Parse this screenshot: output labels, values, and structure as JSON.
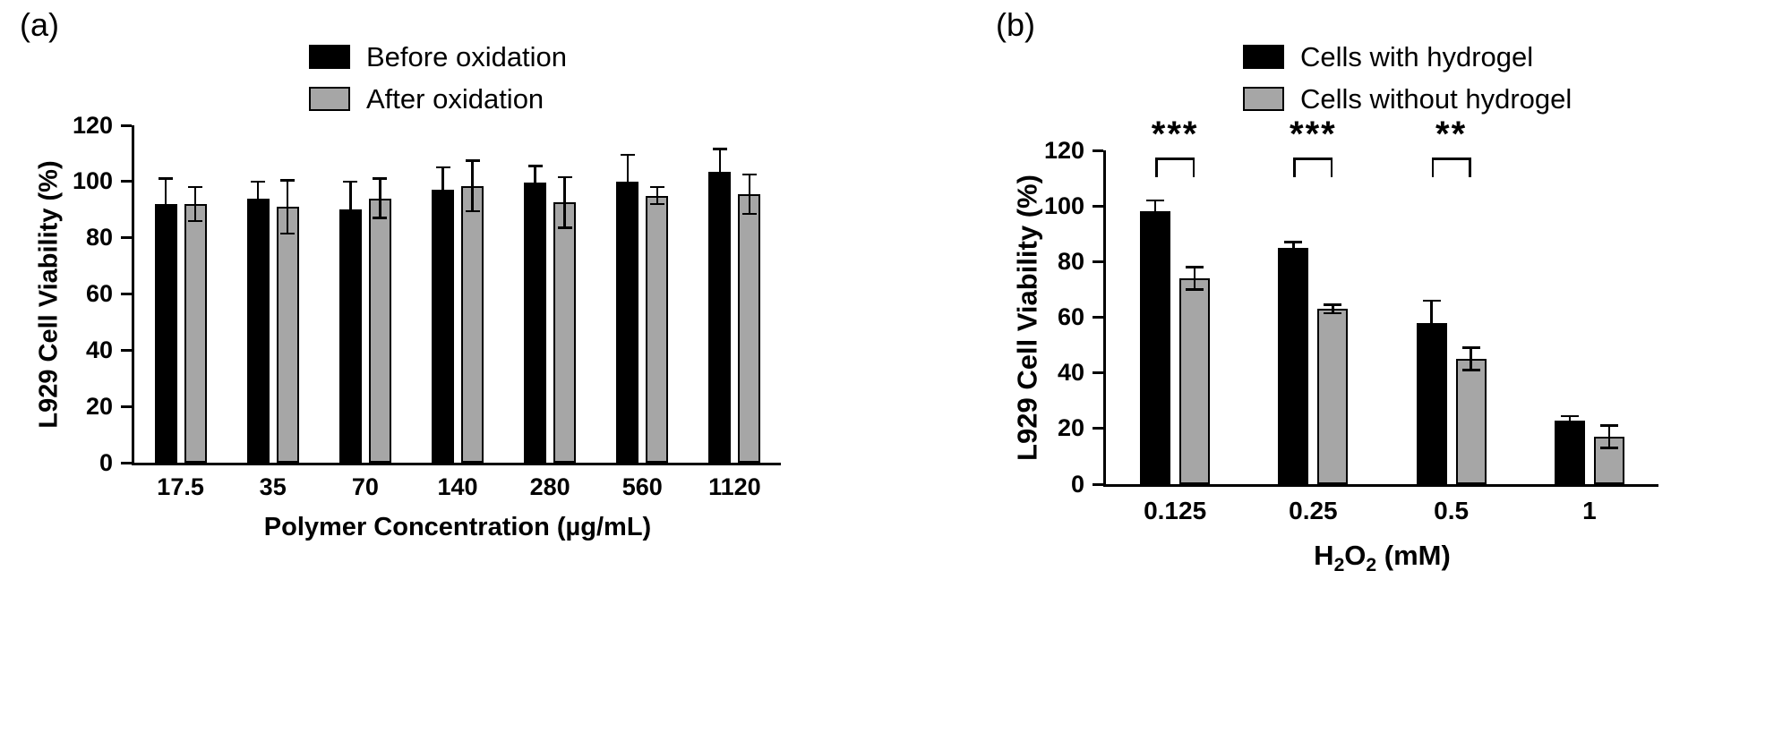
{
  "panels": [
    {
      "label": "(a)"
    },
    {
      "label": "(b)"
    }
  ],
  "colors": {
    "bar_black": "#000000",
    "bar_gray": "#a6a6a6",
    "axis": "#000000"
  },
  "chart_data": [
    {
      "type": "bar",
      "panel": "a",
      "title": "",
      "categories": [
        "17.5",
        "35",
        "70",
        "140",
        "280",
        "560",
        "1120"
      ],
      "series": [
        {
          "name": "Before oxidation",
          "color": "#000000",
          "values": [
            92,
            94,
            90,
            97,
            99.5,
            100,
            103.5
          ],
          "errors": [
            9,
            6,
            10,
            8,
            6,
            9.5,
            8
          ]
        },
        {
          "name": "After oxidation",
          "color": "#a6a6a6",
          "values": [
            92,
            91,
            94,
            98.5,
            92.5,
            95,
            95.5
          ],
          "errors": [
            6,
            9.5,
            7,
            9,
            9,
            3,
            7
          ]
        }
      ],
      "xlabel_parts": [
        {
          "t": "Polymer Concentration (µg/mL)"
        }
      ],
      "ylabel": "L929 Cell Viability (%)",
      "ylim": [
        0,
        120
      ],
      "ytick_step": 20,
      "grid": false,
      "legend_position": "top"
    },
    {
      "type": "bar",
      "panel": "b",
      "title": "",
      "categories": [
        "0.125",
        "0.25",
        "0.5",
        "1"
      ],
      "series": [
        {
          "name": "Cells with hydrogel",
          "color": "#000000",
          "values": [
            98,
            85,
            58,
            23
          ],
          "errors": [
            4,
            2,
            8,
            1.5
          ]
        },
        {
          "name": "Cells without hydrogel",
          "color": "#a6a6a6",
          "values": [
            74,
            63,
            45,
            17
          ],
          "errors": [
            4,
            1.5,
            4,
            4
          ]
        }
      ],
      "significance": [
        "***",
        "***",
        "**",
        ""
      ],
      "xlabel_parts": [
        {
          "t": "H"
        },
        {
          "t": "2",
          "sub": true
        },
        {
          "t": "O"
        },
        {
          "t": "2",
          "sub": true
        },
        {
          "t": " (mM)"
        }
      ],
      "ylabel": "L929 Cell Viability (%)",
      "ylim": [
        0,
        120
      ],
      "ytick_step": 20,
      "grid": false,
      "legend_position": "top"
    }
  ]
}
